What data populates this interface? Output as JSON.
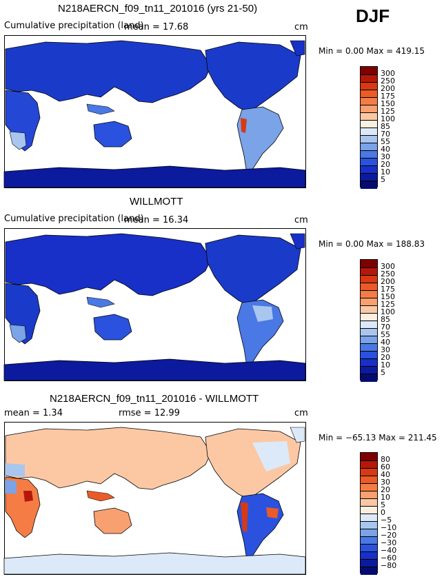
{
  "season": "DJF",
  "panels": [
    {
      "title": "N218AERCN_f09_tn11_201016 (yrs 21-50)",
      "subtitle": "Cumulative precipitation (land)",
      "mean_text": "mean =   17.68",
      "rmse_text": "",
      "units": "cm",
      "minmax_text": "Min =    0.00 Max = 419.15",
      "colorbar": {
        "levels": [
          "300",
          "250",
          "200",
          "175",
          "150",
          "125",
          "100",
          "85",
          "70",
          "55",
          "40",
          "30",
          "20",
          "10",
          "5"
        ],
        "colors": [
          "#7f0000",
          "#b5180a",
          "#d63a15",
          "#ea5b28",
          "#f57d45",
          "#f9a070",
          "#fcc8a4",
          "#fdefe0",
          "#dce9f8",
          "#a9c6ef",
          "#7aa3e8",
          "#4a78e4",
          "#2a52df",
          "#1830c7",
          "#0c1a9e",
          "#050c6f"
        ]
      }
    },
    {
      "title": "WILLMOTT",
      "subtitle": "Cumulative precipitation (land)",
      "mean_text": "mean =   16.34",
      "rmse_text": "",
      "units": "cm",
      "minmax_text": "Min =    0.00 Max = 188.83",
      "colorbar": {
        "levels": [
          "300",
          "250",
          "200",
          "175",
          "150",
          "125",
          "100",
          "85",
          "70",
          "55",
          "40",
          "30",
          "20",
          "10",
          "5"
        ],
        "colors": [
          "#7f0000",
          "#b5180a",
          "#d63a15",
          "#ea5b28",
          "#f57d45",
          "#f9a070",
          "#fcc8a4",
          "#fdefe0",
          "#dce9f8",
          "#a9c6ef",
          "#7aa3e8",
          "#4a78e4",
          "#2a52df",
          "#1830c7",
          "#0c1a9e",
          "#050c6f"
        ]
      }
    },
    {
      "title": "N218AERCN_f09_tn11_201016 - WILLMOTT",
      "subtitle": "",
      "mean_text": "mean =    1.34",
      "rmse_text": "rmse =   12.99",
      "units": "cm",
      "minmax_text": "Min = −65.13 Max = 211.45",
      "colorbar": {
        "levels": [
          "80",
          "60",
          "40",
          "30",
          "20",
          "10",
          "5",
          "0",
          "−5",
          "−10",
          "−20",
          "−30",
          "−40",
          "−60",
          "−80"
        ],
        "colors": [
          "#7f0000",
          "#b5180a",
          "#d63a15",
          "#ea5b28",
          "#f57d45",
          "#f9a070",
          "#fcc8a4",
          "#fdefe0",
          "#dce9f8",
          "#a9c6ef",
          "#7aa3e8",
          "#4a78e4",
          "#2a52df",
          "#1830c7",
          "#0c1a9e",
          "#050c6f"
        ]
      }
    }
  ],
  "chart_data": [
    {
      "type": "heatmap",
      "title": "N218AERCN_f09_tn11_201016 (yrs 21-50)",
      "subtitle": "Cumulative precipitation (land)",
      "mean": 17.68,
      "min": 0.0,
      "max": 419.15,
      "units": "cm",
      "levels": [
        5,
        10,
        20,
        30,
        40,
        55,
        70,
        85,
        100,
        125,
        150,
        175,
        200,
        250,
        300
      ]
    },
    {
      "type": "heatmap",
      "title": "WILLMOTT",
      "subtitle": "Cumulative precipitation (land)",
      "mean": 16.34,
      "min": 0.0,
      "max": 188.83,
      "units": "cm",
      "levels": [
        5,
        10,
        20,
        30,
        40,
        55,
        70,
        85,
        100,
        125,
        150,
        175,
        200,
        250,
        300
      ]
    },
    {
      "type": "heatmap",
      "title": "N218AERCN_f09_tn11_201016 - WILLMOTT",
      "mean": 1.34,
      "rmse": 12.99,
      "min": -65.13,
      "max": 211.45,
      "units": "cm",
      "levels": [
        -80,
        -60,
        -40,
        -30,
        -20,
        -10,
        -5,
        0,
        5,
        10,
        20,
        30,
        40,
        60,
        80
      ]
    }
  ]
}
